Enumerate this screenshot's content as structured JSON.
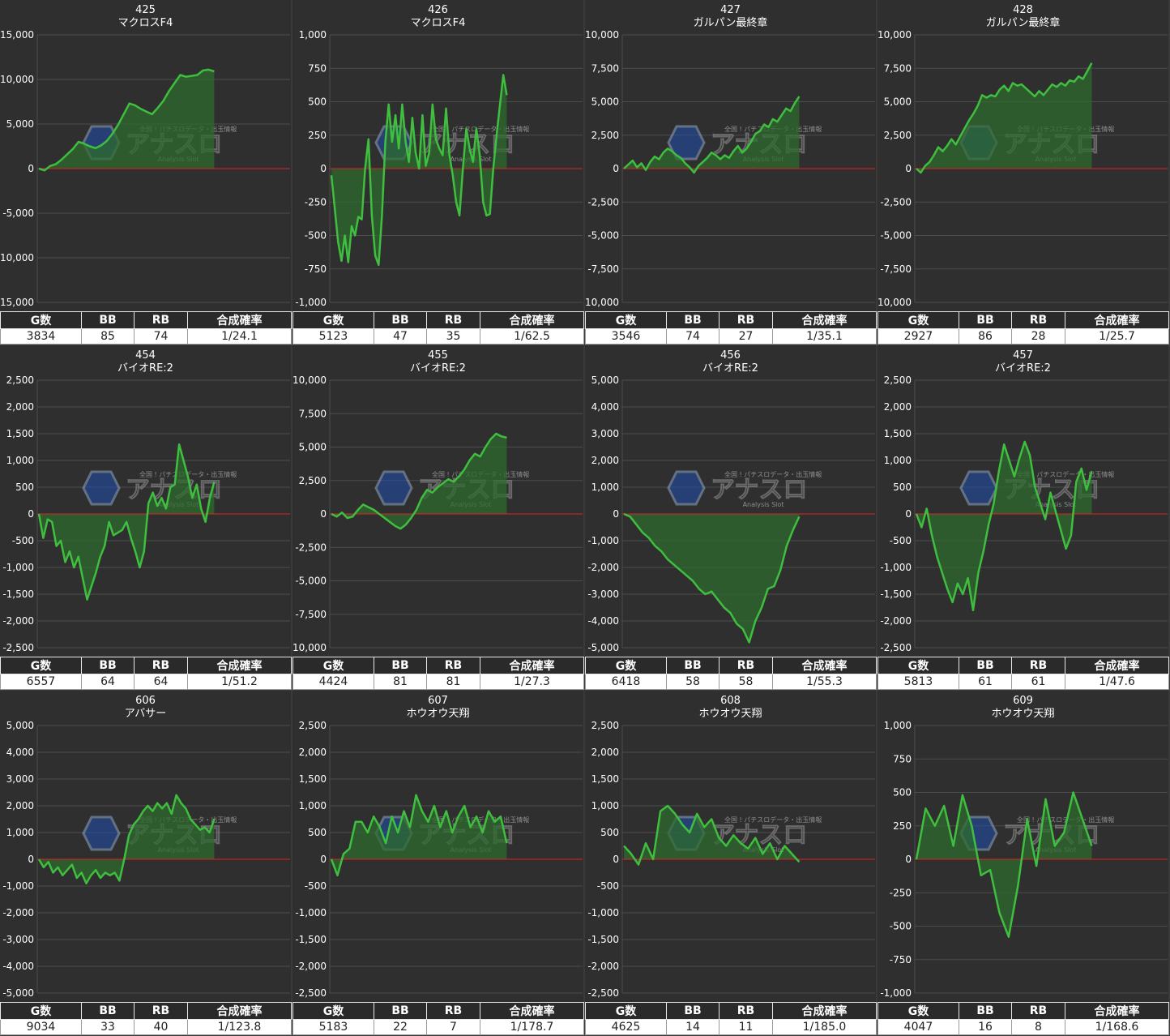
{
  "colors": {
    "line": "#3fbe3f",
    "fill": "#2e6b2e",
    "zero_line": "#e02020",
    "grid": "#4d4d4d",
    "panel_bg": "#2f2f2f"
  },
  "stats_headers": [
    "G数",
    "BB",
    "RB",
    "合成確率"
  ],
  "watermark": {
    "brand": "アナスロ",
    "top_text": "全国 ! パチスロデータ・出玉情報",
    "sub_text": "Analysis Slot"
  },
  "chart_data": [
    {
      "type": "line",
      "machine_no": "425",
      "machine_name": "マクロスF4",
      "ylim": [
        -15000,
        15000
      ],
      "yticks": [
        "15,000",
        "10,000",
        "5,000",
        "0",
        "-5,000",
        "-10,000",
        "-15,000"
      ],
      "values": [
        0,
        -200,
        300,
        500,
        1000,
        1600,
        2200,
        3000,
        2800,
        2500,
        2300,
        2600,
        3100,
        3900,
        4900,
        6100,
        7300,
        7100,
        6700,
        6400,
        6100,
        6800,
        7600,
        8700,
        9600,
        10500,
        10300,
        10400,
        10500,
        11000,
        11100,
        10900
      ],
      "stats": {
        "g": "3834",
        "bb": "85",
        "rb": "74",
        "prob": "1/24.1"
      }
    },
    {
      "type": "line",
      "machine_no": "426",
      "machine_name": "マクロスF4",
      "ylim": [
        -1000,
        1000
      ],
      "yticks": [
        "1,000",
        "750",
        "500",
        "250",
        "0",
        "-250",
        "-500",
        "-750",
        "-1,000"
      ],
      "values": [
        -50,
        -300,
        -550,
        -690,
        -500,
        -700,
        -430,
        -500,
        -360,
        -380,
        0,
        220,
        -350,
        -650,
        -720,
        -350,
        200,
        480,
        200,
        400,
        150,
        480,
        200,
        50,
        380,
        120,
        0,
        400,
        20,
        120,
        480,
        220,
        150,
        100,
        450,
        100,
        -50,
        -250,
        -350,
        0,
        300,
        150,
        50,
        300,
        100,
        -250,
        -350,
        -340,
        0,
        250,
        480,
        700,
        550
      ],
      "stats": {
        "g": "5123",
        "bb": "47",
        "rb": "35",
        "prob": "1/62.5"
      }
    },
    {
      "type": "line",
      "machine_no": "427",
      "machine_name": "ガルパン最終章",
      "ylim": [
        -10000,
        10000
      ],
      "yticks": [
        "10,000",
        "7,500",
        "5,000",
        "2,500",
        "0",
        "-2,500",
        "-5,000",
        "-7,500",
        "-10,000"
      ],
      "values": [
        0,
        300,
        600,
        100,
        400,
        -100,
        500,
        900,
        700,
        1200,
        1500,
        1300,
        1000,
        800,
        400,
        100,
        -300,
        200,
        500,
        800,
        1200,
        1000,
        700,
        1000,
        800,
        1300,
        1700,
        1200,
        1500,
        2000,
        2600,
        2800,
        3300,
        3100,
        3700,
        3500,
        4000,
        4500,
        4300,
        4900,
        5400
      ],
      "stats": {
        "g": "3546",
        "bb": "74",
        "rb": "27",
        "prob": "1/35.1"
      }
    },
    {
      "type": "line",
      "machine_no": "428",
      "machine_name": "ガルパン最終章",
      "ylim": [
        -10000,
        10000
      ],
      "yticks": [
        "10,000",
        "7,500",
        "5,000",
        "2,500",
        "0",
        "-2,500",
        "-5,000",
        "-7,500",
        "-10,000"
      ],
      "values": [
        0,
        -300,
        200,
        500,
        1000,
        1600,
        1300,
        1700,
        2200,
        1800,
        2400,
        3000,
        3600,
        4100,
        4700,
        5500,
        5300,
        5500,
        5400,
        5900,
        6200,
        5800,
        6400,
        6200,
        6300,
        6000,
        5700,
        5400,
        5800,
        5500,
        5900,
        6300,
        6100,
        6400,
        6200,
        6600,
        6500,
        6900,
        6700,
        7300,
        7900
      ],
      "stats": {
        "g": "2927",
        "bb": "86",
        "rb": "28",
        "prob": "1/25.7"
      }
    },
    {
      "type": "line",
      "machine_no": "454",
      "machine_name": "バイオRE:2",
      "ylim": [
        -2500,
        2500
      ],
      "yticks": [
        "2,500",
        "2,000",
        "1,500",
        "1,000",
        "500",
        "0",
        "-500",
        "-1,000",
        "-1,500",
        "-2,000",
        "-2,500"
      ],
      "values": [
        0,
        -450,
        -100,
        -150,
        -600,
        -500,
        -900,
        -700,
        -1000,
        -800,
        -1200,
        -1600,
        -1350,
        -1100,
        -800,
        -600,
        -150,
        -400,
        -350,
        -300,
        -150,
        -450,
        -700,
        -1000,
        -700,
        200,
        400,
        150,
        300,
        100,
        500,
        550,
        1300,
        1000,
        700,
        300,
        550,
        100,
        -150,
        300,
        600
      ],
      "stats": {
        "g": "6557",
        "bb": "64",
        "rb": "64",
        "prob": "1/51.2"
      }
    },
    {
      "type": "line",
      "machine_no": "455",
      "machine_name": "バイオRE:2",
      "ylim": [
        -10000,
        10000
      ],
      "yticks": [
        "10,000",
        "7,500",
        "5,000",
        "2,500",
        "0",
        "-2,500",
        "-5,000",
        "-7,500",
        "-10,000"
      ],
      "values": [
        0,
        -200,
        100,
        -300,
        -200,
        300,
        700,
        500,
        300,
        0,
        -300,
        -600,
        -900,
        -1100,
        -800,
        -300,
        300,
        1200,
        1800,
        1600,
        2000,
        2300,
        2600,
        2400,
        2800,
        3300,
        4000,
        4500,
        4300,
        5000,
        5600,
        6000,
        5800,
        5700
      ],
      "stats": {
        "g": "4424",
        "bb": "81",
        "rb": "81",
        "prob": "1/27.3"
      }
    },
    {
      "type": "line",
      "machine_no": "456",
      "machine_name": "バイオRE:2",
      "ylim": [
        -5000,
        5000
      ],
      "yticks": [
        "5,000",
        "4,000",
        "3,000",
        "2,000",
        "1,000",
        "0",
        "-1,000",
        "-2,000",
        "-3,000",
        "-4,000",
        "-5,000"
      ],
      "values": [
        0,
        -100,
        -400,
        -700,
        -900,
        -1200,
        -1400,
        -1700,
        -1900,
        -2100,
        -2300,
        -2500,
        -2800,
        -3000,
        -2900,
        -3200,
        -3500,
        -3700,
        -4100,
        -4300,
        -4800,
        -4000,
        -3500,
        -2800,
        -2700,
        -2100,
        -1200,
        -600,
        -100
      ],
      "stats": {
        "g": "6418",
        "bb": "58",
        "rb": "58",
        "prob": "1/55.3"
      }
    },
    {
      "type": "line",
      "machine_no": "457",
      "machine_name": "バイオRE:2",
      "ylim": [
        -2500,
        2500
      ],
      "yticks": [
        "2,500",
        "2,000",
        "1,500",
        "1,000",
        "500",
        "0",
        "-500",
        "-1,000",
        "-1,500",
        "-2,000",
        "-2,500"
      ],
      "values": [
        0,
        -250,
        100,
        -400,
        -800,
        -1100,
        -1400,
        -1650,
        -1300,
        -1500,
        -1200,
        -1800,
        -1100,
        -700,
        -200,
        200,
        800,
        1300,
        1000,
        700,
        1050,
        1350,
        1100,
        500,
        200,
        -100,
        400,
        50,
        -300,
        -650,
        -400,
        600,
        850,
        450,
        800
      ],
      "stats": {
        "g": "5813",
        "bb": "61",
        "rb": "61",
        "prob": "1/47.6"
      }
    },
    {
      "type": "line",
      "machine_no": "606",
      "machine_name": "アバサー",
      "ylim": [
        -5000,
        5000
      ],
      "yticks": [
        "5,000",
        "4,000",
        "3,000",
        "2,000",
        "1,000",
        "0",
        "-1,000",
        "-2,000",
        "-3,000",
        "-4,000",
        "-5,000"
      ],
      "values": [
        0,
        -300,
        -100,
        -500,
        -300,
        -600,
        -400,
        -200,
        -700,
        -500,
        -900,
        -600,
        -400,
        -700,
        -500,
        -600,
        -500,
        -800,
        0,
        900,
        1300,
        1500,
        1800,
        2000,
        1800,
        2100,
        1900,
        2100,
        1700,
        2400,
        2100,
        1900,
        1500,
        1300,
        1100,
        1200,
        1000,
        1500
      ],
      "stats": {
        "g": "9034",
        "bb": "33",
        "rb": "40",
        "prob": "1/123.8"
      }
    },
    {
      "type": "line",
      "machine_no": "607",
      "machine_name": "ホウオウ天翔",
      "ylim": [
        -2500,
        2500
      ],
      "yticks": [
        "2,500",
        "2,000",
        "1,500",
        "1,000",
        "500",
        "0",
        "-500",
        "-1,000",
        "-1,500",
        "-2,000",
        "-2,500"
      ],
      "values": [
        0,
        -300,
        100,
        200,
        700,
        700,
        500,
        800,
        600,
        300,
        800,
        500,
        900,
        600,
        1200,
        900,
        700,
        1000,
        600,
        900,
        500,
        800,
        1000,
        600,
        800,
        500,
        900,
        700,
        800,
        300
      ],
      "stats": {
        "g": "5183",
        "bb": "22",
        "rb": "7",
        "prob": "1/178.7"
      }
    },
    {
      "type": "line",
      "machine_no": "608",
      "machine_name": "ホウオウ天翔",
      "ylim": [
        -2500,
        2500
      ],
      "yticks": [
        "2,500",
        "2,000",
        "1,500",
        "1,000",
        "500",
        "0",
        "-500",
        "-1,000",
        "-1,500",
        "-2,000",
        "-2,500"
      ],
      "values": [
        250,
        100,
        -100,
        300,
        0,
        900,
        1000,
        850,
        650,
        500,
        850,
        600,
        750,
        400,
        250,
        450,
        300,
        200,
        400,
        100,
        300,
        0,
        250,
        100,
        -50
      ],
      "stats": {
        "g": "4625",
        "bb": "14",
        "rb": "11",
        "prob": "1/185.0"
      }
    },
    {
      "type": "line",
      "machine_no": "609",
      "machine_name": "ホウオウ天翔",
      "ylim": [
        -1000,
        1000
      ],
      "yticks": [
        "1,000",
        "750",
        "500",
        "250",
        "0",
        "-250",
        "-500",
        "-750",
        "-1,000"
      ],
      "values": [
        0,
        380,
        250,
        400,
        100,
        480,
        250,
        -120,
        -80,
        -400,
        -580,
        -200,
        300,
        -50,
        450,
        100,
        200,
        500,
        300,
        100
      ],
      "stats": {
        "g": "4047",
        "bb": "16",
        "rb": "8",
        "prob": "1/168.6"
      }
    }
  ]
}
